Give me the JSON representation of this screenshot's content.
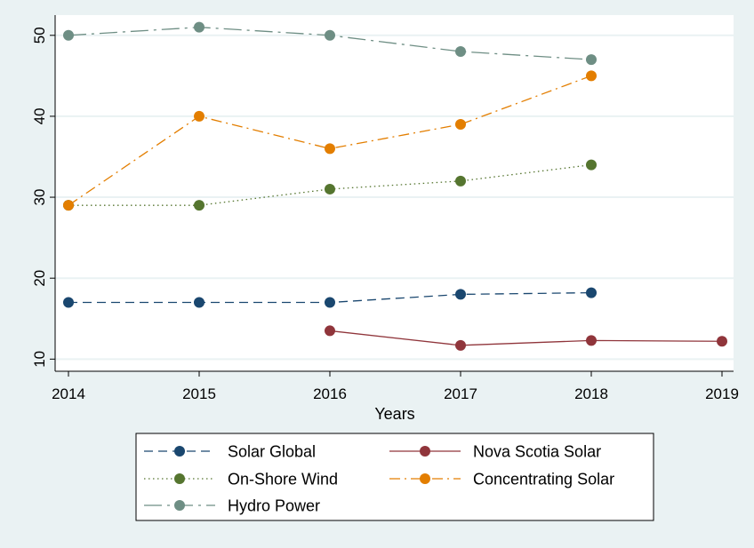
{
  "chart_data": {
    "type": "line",
    "title": "",
    "xlabel": "Years",
    "ylabel": "",
    "xlim": [
      2014,
      2019
    ],
    "ylim": [
      8.5,
      52.5
    ],
    "x_ticks": [
      2014,
      2015,
      2016,
      2017,
      2018,
      2019
    ],
    "y_ticks": [
      10,
      20,
      30,
      40,
      50
    ],
    "grid": "horizontal",
    "legend_position": "bottom",
    "series": [
      {
        "name": "Solar Global",
        "color": "#1a476f",
        "dash": "dashed",
        "points": [
          [
            2014,
            17
          ],
          [
            2015,
            17
          ],
          [
            2016,
            17
          ],
          [
            2017,
            18
          ],
          [
            2018,
            18.2
          ]
        ]
      },
      {
        "name": "Nova Scotia Solar",
        "color": "#90353b",
        "dash": "solid",
        "points": [
          [
            2016,
            13.5
          ],
          [
            2017,
            11.7
          ],
          [
            2018,
            12.3
          ],
          [
            2019,
            12.2
          ]
        ]
      },
      {
        "name": "On-Shore Wind",
        "color": "#55752f",
        "dash": "dotted",
        "points": [
          [
            2014,
            29
          ],
          [
            2015,
            29
          ],
          [
            2016,
            31
          ],
          [
            2017,
            32
          ],
          [
            2018,
            34
          ]
        ]
      },
      {
        "name": "Concentrating Solar",
        "color": "#e37e00",
        "dash": "dashdot",
        "points": [
          [
            2014,
            29
          ],
          [
            2015,
            40
          ],
          [
            2016,
            36
          ],
          [
            2017,
            39
          ],
          [
            2018,
            45
          ]
        ]
      },
      {
        "name": "Hydro Power",
        "color": "#6e8e84",
        "dash": "longdashdot",
        "points": [
          [
            2014,
            50
          ],
          [
            2015,
            51
          ],
          [
            2016,
            50
          ],
          [
            2017,
            48
          ],
          [
            2018,
            47
          ]
        ]
      }
    ]
  }
}
